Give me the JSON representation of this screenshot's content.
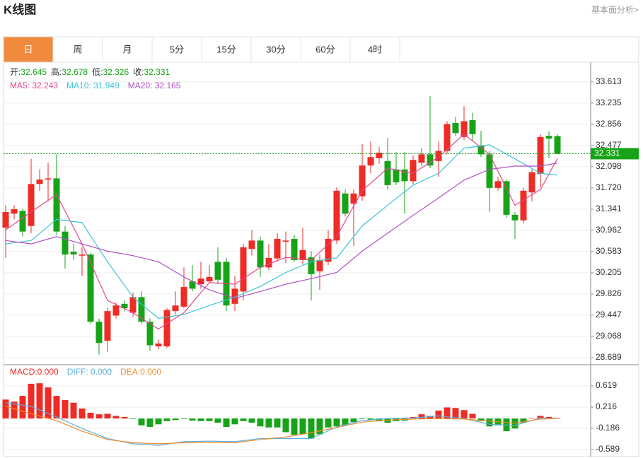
{
  "header": {
    "title": "K线图",
    "link": "基本面分析>"
  },
  "tabs": [
    "日",
    "周",
    "月",
    "5分",
    "15分",
    "30分",
    "60分",
    "4时"
  ],
  "active_tab": 0,
  "chart_data": [
    {
      "type": "candlestick",
      "ohlc_labels": [
        {
          "label": "开:",
          "value": 32.645
        },
        {
          "label": "高:",
          "value": 32.678
        },
        {
          "label": "低:",
          "value": 32.326
        },
        {
          "label": "收:",
          "value": 32.331
        }
      ],
      "up_color": "#ee2b25",
      "down_color": "#17a317",
      "open": [
        31.01,
        31.26,
        31.31,
        31.04,
        31.79,
        31.87,
        31.89,
        30.94,
        30.58,
        30.51,
        30.53,
        29.33,
        28.99,
        29.44,
        29.65,
        29.49,
        29.77,
        29.33,
        28.89,
        28.89,
        29.52,
        29.6,
        30.05,
        30.0,
        30.05,
        30.4,
        30.4,
        29.65,
        29.87,
        30.63,
        30.78,
        30.3,
        30.46,
        30.76,
        30.81,
        30.43,
        30.48,
        30.23,
        30.4,
        30.78,
        31.62,
        31.44,
        31.57,
        32.12,
        32.25,
        32.2,
        32.05,
        32.05,
        31.84,
        32.17,
        32.32,
        32.2,
        32.38,
        32.88,
        32.63,
        32.93,
        32.48,
        32.32,
        31.72,
        31.84,
        31.24,
        31.14,
        31.64,
        31.97,
        32.65,
        32.645
      ],
      "high": [
        31.41,
        31.41,
        31.34,
        32.24,
        32.05,
        32.17,
        32.32,
        31.04,
        30.72,
        30.66,
        30.56,
        29.39,
        29.58,
        29.67,
        29.71,
        29.85,
        29.87,
        29.39,
        29.01,
        29.57,
        29.87,
        30.3,
        30.34,
        30.4,
        30.34,
        30.66,
        30.47,
        30.15,
        30.72,
        30.97,
        30.85,
        30.72,
        30.91,
        30.94,
        30.88,
        31.01,
        30.59,
        30.53,
        30.97,
        31.73,
        31.69,
        31.69,
        32.5,
        32.55,
        32.45,
        32.61,
        32.36,
        32.36,
        32.3,
        32.43,
        33.36,
        32.55,
        32.91,
        32.99,
        33.18,
        33.06,
        32.74,
        32.38,
        31.92,
        31.87,
        31.29,
        31.72,
        32.05,
        32.68,
        32.73,
        32.678
      ],
      "low": [
        30.47,
        31.16,
        30.85,
        30.91,
        31.67,
        31.48,
        30.88,
        30.28,
        30.43,
        30.15,
        29.29,
        28.74,
        28.79,
        29.39,
        29.52,
        29.42,
        29.29,
        28.81,
        28.84,
        28.86,
        29.46,
        29.57,
        29.87,
        29.92,
        30.03,
        30.0,
        29.52,
        29.52,
        29.71,
        30.51,
        30.13,
        30.25,
        30.4,
        30.38,
        30.4,
        30.35,
        29.71,
        29.9,
        30.34,
        30.72,
        31.21,
        30.68,
        31.49,
        31.98,
        32.15,
        31.69,
        31.77,
        31.26,
        31.79,
        32.11,
        32.07,
        31.92,
        32.32,
        32.65,
        32.58,
        32.55,
        32.27,
        31.29,
        31.67,
        31.19,
        30.81,
        31.09,
        31.48,
        31.73,
        32.25,
        32.326
      ],
      "close": [
        31.29,
        31.34,
        30.94,
        31.79,
        31.87,
        31.89,
        30.94,
        30.53,
        30.53,
        30.53,
        29.33,
        28.95,
        29.52,
        29.62,
        29.57,
        29.77,
        29.33,
        28.91,
        28.94,
        29.54,
        29.62,
        29.95,
        29.92,
        30.1,
        30.13,
        30.08,
        29.62,
        29.92,
        30.66,
        30.78,
        30.3,
        30.47,
        30.81,
        30.78,
        30.43,
        30.61,
        30.18,
        30.43,
        30.81,
        31.67,
        31.26,
        31.62,
        32.12,
        32.27,
        32.35,
        31.77,
        31.82,
        31.84,
        32.22,
        32.32,
        32.12,
        32.38,
        32.86,
        32.7,
        32.91,
        32.68,
        32.32,
        31.72,
        31.84,
        31.24,
        31.14,
        31.67,
        32.0,
        32.63,
        32.6,
        32.331
      ],
      "series": [
        {
          "name": "MA5: 32.243",
          "color": "#e6458f",
          "x": [
            0,
            3,
            6,
            9,
            12,
            15,
            18,
            21,
            24,
            27,
            30,
            33,
            36,
            39,
            42,
            45,
            48,
            51,
            54,
            57,
            60,
            63,
            65
          ],
          "values": [
            30.97,
            31.29,
            31.6,
            30.72,
            29.71,
            29.49,
            29.2,
            29.49,
            30.03,
            30.0,
            30.3,
            30.48,
            30.43,
            30.85,
            31.67,
            32.07,
            31.98,
            32.27,
            32.68,
            32.32,
            31.41,
            31.69,
            32.243
          ]
        },
        {
          "name": "MA10: 31.949",
          "color": "#3ec3d8",
          "x": [
            0,
            3,
            6,
            9,
            12,
            15,
            18,
            21,
            24,
            27,
            30,
            33,
            36,
            39,
            42,
            45,
            48,
            51,
            54,
            57,
            60,
            63,
            65
          ],
          "values": [
            30.72,
            30.78,
            31.16,
            31.1,
            30.4,
            29.77,
            29.39,
            29.46,
            29.62,
            29.77,
            29.96,
            30.21,
            30.4,
            30.47,
            31.04,
            31.41,
            31.77,
            31.98,
            32.43,
            32.49,
            32.24,
            31.98,
            31.949
          ]
        },
        {
          "name": "MA20: 32.165",
          "color": "#b24fc6",
          "x": [
            0,
            3,
            6,
            9,
            12,
            15,
            18,
            21,
            24,
            27,
            30,
            33,
            36,
            39,
            42,
            45,
            48,
            51,
            54,
            57,
            60,
            63,
            65
          ],
          "values": [
            30.78,
            30.72,
            30.85,
            30.72,
            30.59,
            30.51,
            30.4,
            30.13,
            29.9,
            29.75,
            29.87,
            30.0,
            30.1,
            30.21,
            30.59,
            30.91,
            31.23,
            31.54,
            31.86,
            32.05,
            32.11,
            32.11,
            32.165
          ]
        }
      ],
      "ylim": [
        28.575,
        33.94
      ],
      "yticks": [
        33.613,
        33.235,
        32.856,
        32.477,
        32.098,
        {
          "value": 31.72,
          "label": "31.720"
        },
        31.341,
        30.962,
        30.583,
        30.205,
        29.826,
        29.447,
        29.068,
        28.689
      ],
      "current_price": 32.331,
      "current_color": "#17a317",
      "grid": true
    },
    {
      "type": "macd",
      "name": "MACD:0.000",
      "up_color": "#ee2b25",
      "down_color": "#17a317",
      "values": [
        0.36,
        0.32,
        0.43,
        0.66,
        0.67,
        0.59,
        0.43,
        0.35,
        0.3,
        0.19,
        0.11,
        0.08,
        0.09,
        0.05,
        0.03,
        -0.01,
        -0.13,
        -0.16,
        -0.11,
        -0.05,
        -0.03,
        -0.01,
        -0.04,
        -0.05,
        -0.05,
        -0.08,
        -0.16,
        -0.11,
        -0.05,
        -0.08,
        -0.15,
        -0.17,
        -0.17,
        -0.26,
        -0.31,
        -0.3,
        -0.38,
        -0.3,
        -0.17,
        -0.15,
        -0.13,
        -0.07,
        -0.01,
        -0.03,
        -0.05,
        -0.08,
        -0.05,
        -0.04,
        0.03,
        0.08,
        0.05,
        0.15,
        0.21,
        0.2,
        0.16,
        0.09,
        -0.05,
        -0.15,
        -0.13,
        -0.24,
        -0.19,
        -0.08,
        0.01,
        0.05,
        0.03,
        0.01
      ],
      "series": [
        {
          "name": "DIFF: 0.000",
          "color": "#5aaee0",
          "x": [
            0,
            3,
            6,
            9,
            12,
            15,
            18,
            21,
            24,
            27,
            30,
            33,
            36,
            39,
            42,
            45,
            48,
            51,
            54,
            57,
            60,
            63,
            65
          ],
          "values": [
            0.3,
            0.23,
            0.03,
            -0.19,
            -0.38,
            -0.48,
            -0.51,
            -0.44,
            -0.43,
            -0.44,
            -0.38,
            -0.38,
            -0.38,
            -0.16,
            -0.04,
            0,
            0.01,
            0.05,
            0,
            -0.11,
            -0.13,
            0.01,
            0
          ]
        },
        {
          "name": "DEA:0.000",
          "color": "#f08c2a",
          "x": [
            0,
            3,
            6,
            9,
            12,
            15,
            18,
            21,
            24,
            27,
            30,
            33,
            36,
            39,
            42,
            45,
            48,
            51,
            54,
            57,
            60,
            63,
            65
          ],
          "values": [
            0.23,
            0.09,
            -0.04,
            -0.24,
            -0.4,
            -0.46,
            -0.48,
            -0.46,
            -0.46,
            -0.46,
            -0.4,
            -0.35,
            -0.27,
            -0.17,
            -0.07,
            -0.03,
            -0.01,
            0,
            -0.01,
            -0.05,
            -0.09,
            -0.01,
            0
          ]
        }
      ],
      "ylim": [
        -0.71,
        0.995
      ],
      "yticks": [
        0.619,
        0.216,
        -0.186,
        -0.589
      ],
      "grid": true
    }
  ]
}
